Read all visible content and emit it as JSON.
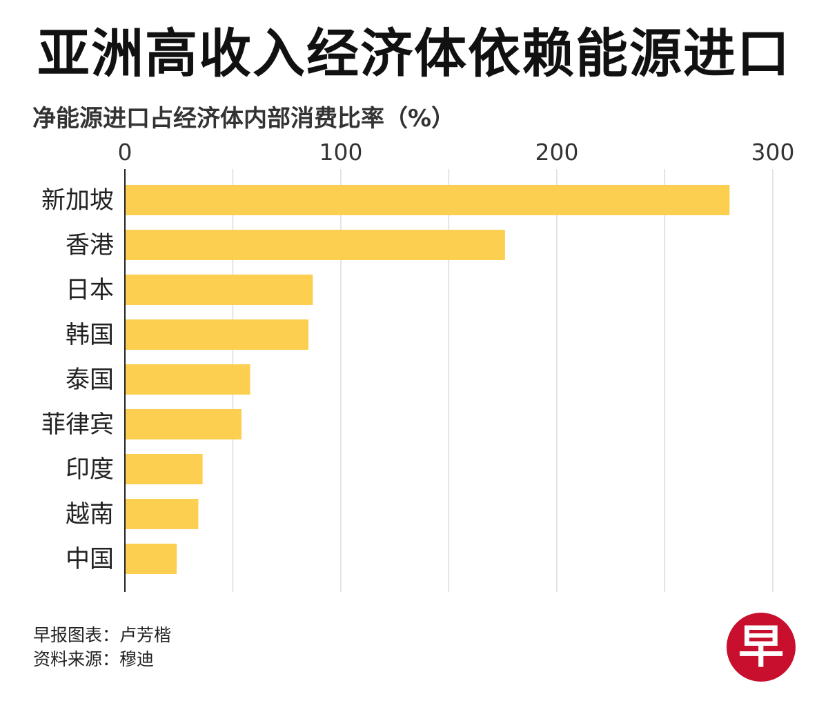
{
  "title": "亚洲高收入经济体依赖能源进口",
  "subtitle": "净能源进口占经济体内部消费比率（%）",
  "chart_data": {
    "type": "bar",
    "orientation": "horizontal",
    "title": "亚洲高收入经济体依赖能源进口",
    "ylabel": "净能源进口占经济体内部消费比率（%）",
    "xlim": [
      0,
      300
    ],
    "x_ticks": [
      0,
      100,
      200,
      300
    ],
    "x_tick_labels": [
      "0",
      "100",
      "200",
      "300"
    ],
    "x_axis_position": "top",
    "grid": true,
    "categories": [
      "新加坡",
      "香港",
      "日本",
      "韩国",
      "泰国",
      "菲律宾",
      "印度",
      "越南",
      "中国"
    ],
    "values": [
      280,
      176,
      87,
      85,
      58,
      54,
      36,
      34,
      24
    ],
    "bar_color": "#FDCF50"
  },
  "footer": {
    "credit": "早报图表：卢芳楷",
    "source": "资料来源：穆迪"
  },
  "logo": {
    "text": "早",
    "color": "#C8102E"
  }
}
